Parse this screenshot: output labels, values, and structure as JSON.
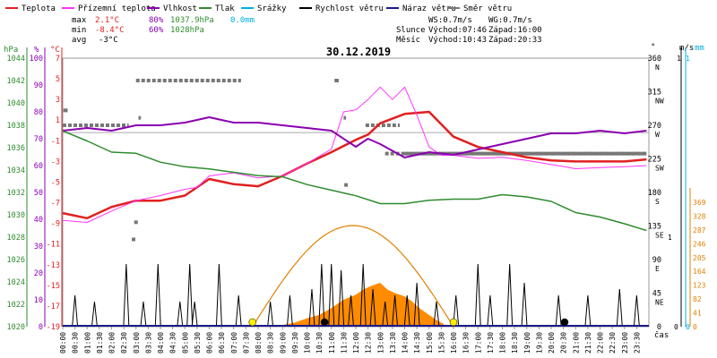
{
  "legend": [
    {
      "label": "Teplota",
      "color": "#e02020"
    },
    {
      "label": "Přízemní teplota",
      "color": "#ff33ff"
    },
    {
      "label": "Vlhkost",
      "color": "#8a00b0"
    },
    {
      "label": "Tlak",
      "color": "#2e8b2e"
    },
    {
      "label": "Srážky",
      "color": "#00b0e0"
    },
    {
      "label": "Rychlost větru",
      "color": "#000000"
    },
    {
      "label": "Náraz větru",
      "color": "#1a1a8c"
    },
    {
      "label": "Směr větru",
      "color": "#777777"
    }
  ],
  "stats": {
    "max_label": "max",
    "max_temp": "2.1°C",
    "max_hum": "80%",
    "max_press": "1037.9hPa",
    "max_rain": "0.0mm",
    "min_label": "min",
    "min_temp": "-8.4°C",
    "min_hum": "60%",
    "min_press": "1028hPa",
    "avg_label": "avg",
    "avg_temp": "-3°C"
  },
  "wind_info": {
    "ws": "WS:0.7m/s",
    "wg": "WG:0.7m/s"
  },
  "sun_info": {
    "label": "Slunce",
    "rise": "Východ:07:46",
    "set": "Západ:16:00"
  },
  "moon_info": {
    "label": "Měsíc",
    "rise": "Východ:10:43",
    "set": "Západ:20:33"
  },
  "colors": {
    "temp": "#e02020",
    "ground": "#ff33ff",
    "humidity": "#8a00b0",
    "pressure": "#2e8b2e",
    "rain": "#00b0e0",
    "wind": "#000000",
    "gust": "#1a1a8c",
    "direction": "#777777",
    "solar_curve": "#e08000",
    "solar_fill": "#ff8c00",
    "sun_marker": "#ffee00"
  },
  "chart_data": {
    "type": "line",
    "title": "30.12.2019",
    "x_axis": {
      "label": "čas",
      "ticks": [
        "00:00",
        "00:30",
        "01:00",
        "01:30",
        "02:00",
        "02:30",
        "03:00",
        "03:30",
        "04:00",
        "04:30",
        "05:00",
        "05:30",
        "06:00",
        "06:30",
        "07:00",
        "07:30",
        "08:00",
        "08:30",
        "09:00",
        "09:30",
        "10:00",
        "10:30",
        "11:00",
        "11:30",
        "12:00",
        "12:30",
        "13:00",
        "13:30",
        "14:00",
        "14:30",
        "15:00",
        "15:30",
        "16:00",
        "16:30",
        "17:00",
        "17:30",
        "18:00",
        "18:30",
        "19:00",
        "19:30",
        "20:00",
        "20:30",
        "21:00",
        "21:30",
        "22:00",
        "22:30",
        "23:00",
        "23:30"
      ]
    },
    "axes": {
      "pressure": {
        "label": "hPa",
        "ticks": [
          "1044",
          "1042",
          "1040",
          "1038",
          "1036",
          "1034",
          "1032",
          "1030",
          "1028",
          "1026",
          "1024",
          "1022",
          "1020"
        ],
        "range": [
          1020,
          1044
        ]
      },
      "humidity": {
        "label": "%",
        "ticks": [
          "100",
          "90",
          "80",
          "70",
          "60",
          "50",
          "40",
          "30",
          "20",
          "10",
          "0"
        ],
        "range": [
          0,
          100
        ]
      },
      "temperature": {
        "label": "°C",
        "ticks": [
          "7",
          "5",
          "3",
          "1",
          "-1",
          "-3",
          "-5",
          "-7",
          "-9",
          "-11",
          "-13",
          "-15",
          "-17",
          "-19"
        ],
        "range": [
          -19,
          7
        ]
      },
      "direction": {
        "label": "°",
        "ticks": [
          "360",
          "315",
          "270",
          "225",
          "180",
          "135",
          "90",
          "45",
          "0"
        ],
        "names": [
          "N",
          "NW",
          "W",
          "SW",
          "S",
          "SE",
          "E",
          "NE",
          ""
        ],
        "range": [
          0,
          360
        ]
      },
      "wind": {
        "label": "m/s",
        "ticks": [
          "1",
          "1",
          "0"
        ]
      },
      "rain": {
        "label": "mm",
        "ticks": [
          "1",
          "0"
        ]
      },
      "solar": {
        "label": "W/m²",
        "ticks": [
          "369",
          "328",
          "287",
          "246",
          "205",
          "164",
          "123",
          "82",
          "41",
          "0"
        ],
        "range": [
          0,
          369
        ]
      }
    },
    "hline_temp": -0.2,
    "series": [
      {
        "name": "Teplota",
        "axis": "temperature",
        "x": [
          0,
          1,
          2,
          3,
          4,
          5,
          6,
          7,
          8,
          9,
          10,
          11,
          12,
          12.5,
          13,
          14,
          15,
          16,
          17,
          18,
          19,
          20,
          21,
          22,
          23,
          23.9
        ],
        "values": [
          -8.0,
          -8.5,
          -7.4,
          -6.8,
          -6.8,
          -6.3,
          -4.7,
          -5.2,
          -5.4,
          -4.4,
          -3.2,
          -2.1,
          -0.9,
          -0.4,
          0.7,
          1.6,
          1.8,
          -0.6,
          -1.6,
          -2.1,
          -2.6,
          -2.9,
          -3.0,
          -3.0,
          -3.0,
          -2.8
        ]
      },
      {
        "name": "Přízemní teplota",
        "axis": "temperature",
        "x": [
          0,
          1,
          2,
          3,
          4,
          5,
          5.5,
          6,
          7,
          8,
          9,
          10,
          11,
          11.5,
          12,
          12.5,
          13,
          13.5,
          14,
          14.5,
          15,
          15.5,
          16,
          17,
          18,
          19,
          20,
          21,
          22,
          23,
          23.9
        ],
        "values": [
          -8.7,
          -8.9,
          -7.8,
          -6.8,
          -6.3,
          -5.7,
          -5.5,
          -4.4,
          -4.1,
          -4.6,
          -4.4,
          -3.2,
          -1.8,
          1.8,
          2.0,
          3.0,
          4.2,
          3.0,
          4.2,
          1.5,
          -1.6,
          -2.4,
          -2.4,
          -2.7,
          -2.6,
          -2.9,
          -3.3,
          -3.7,
          -3.6,
          -3.5,
          -3.4
        ]
      },
      {
        "name": "Vlhkost",
        "axis": "humidity",
        "x": [
          0,
          1,
          2,
          3,
          4,
          5,
          6,
          6.5,
          7,
          8,
          9,
          10,
          11,
          12,
          12.5,
          13,
          14,
          14.5,
          15,
          16,
          17,
          18,
          19,
          20,
          21,
          22,
          23,
          23.9
        ],
        "values": [
          73,
          74,
          73,
          75,
          75,
          76,
          78,
          77,
          76,
          76,
          75,
          74,
          73,
          67,
          70,
          68,
          63,
          64,
          65,
          64,
          66,
          68,
          70,
          72,
          72,
          73,
          72,
          73
        ]
      },
      {
        "name": "Tlak",
        "axis": "pressure",
        "x": [
          0,
          1,
          2,
          3,
          4,
          5,
          6,
          7,
          8,
          9,
          10,
          11,
          12,
          13,
          14,
          15,
          16,
          17,
          18,
          19,
          20,
          21,
          22,
          23,
          23.9
        ],
        "values": [
          1037.5,
          1036.6,
          1035.6,
          1035.5,
          1034.7,
          1034.3,
          1034.1,
          1033.8,
          1033.5,
          1033.4,
          1032.7,
          1032.2,
          1031.7,
          1031.0,
          1031.0,
          1031.3,
          1031.4,
          1031.4,
          1031.8,
          1031.6,
          1031.2,
          1030.2,
          1029.8,
          1029.2,
          1028.6
        ]
      },
      {
        "name": "Náraz větru",
        "axis": "wind",
        "x": [
          0,
          23.9
        ],
        "values": [
          0,
          0
        ]
      },
      {
        "name": "Srážky",
        "axis": "rain",
        "x": [
          0,
          23.9
        ],
        "values": [
          0,
          0
        ]
      }
    ],
    "wind_speed_peaks": [
      0.5,
      1.3,
      2.6,
      3.3,
      3.9,
      4.8,
      5.2,
      5.4,
      6.4,
      7.2,
      8.5,
      9.3,
      10.2,
      10.6,
      11.0,
      11.4,
      11.8,
      12.3,
      12.7,
      13.2,
      13.6,
      14.1,
      14.5,
      15.3,
      16.1,
      17.0,
      17.5,
      18.3,
      18.9,
      20.3,
      21.5,
      22.8,
      23.5
    ],
    "wind_speed_heights": [
      0.5,
      0.4,
      1.0,
      0.4,
      1.0,
      0.4,
      1.0,
      0.4,
      1.0,
      0.5,
      0.4,
      0.5,
      0.6,
      1.0,
      1.0,
      0.9,
      0.5,
      1.0,
      0.6,
      0.4,
      0.5,
      0.5,
      0.7,
      0.4,
      0.5,
      1.0,
      0.5,
      1.0,
      0.7,
      0.5,
      0.5,
      0.6,
      0.5
    ],
    "wind_direction": {
      "x_from": [
        0,
        0.1,
        3.0,
        3.1,
        11.2,
        11.5,
        12.4,
        13.2,
        14.0
      ],
      "x_to": [
        2.7,
        0.2,
        7.3,
        3.2,
        11.3,
        11.6,
        13.8,
        23.9,
        23.9
      ],
      "values": [
        270,
        290,
        330,
        280,
        330,
        280,
        270,
        232,
        232
      ]
    },
    "wind_direction_isolated": [
      {
        "x": 0.1,
        "v": 290
      },
      {
        "x": 3.0,
        "v": 140
      },
      {
        "x": 2.9,
        "v": 117
      },
      {
        "x": 11.2,
        "v": 330
      },
      {
        "x": 11.6,
        "v": 190
      }
    ],
    "solar_radiation": {
      "x": [
        9,
        9.5,
        10,
        10.5,
        11,
        11.5,
        12,
        12.3,
        12.6,
        13,
        13.3,
        13.6,
        14,
        14.3,
        14.6,
        15,
        15.3,
        15.6
      ],
      "values": [
        5,
        12,
        25,
        35,
        55,
        80,
        95,
        110,
        120,
        130,
        110,
        100,
        90,
        75,
        55,
        35,
        20,
        8
      ]
    },
    "solar_potential": {
      "rise_h": 7.77,
      "set_h": 16.0,
      "max": 300
    },
    "markers": [
      {
        "x": 7.77,
        "type": "sunrise"
      },
      {
        "x": 16.0,
        "type": "sunset"
      },
      {
        "x": 10.72,
        "type": "moonrise"
      },
      {
        "x": 20.55,
        "type": "moonset"
      }
    ]
  }
}
